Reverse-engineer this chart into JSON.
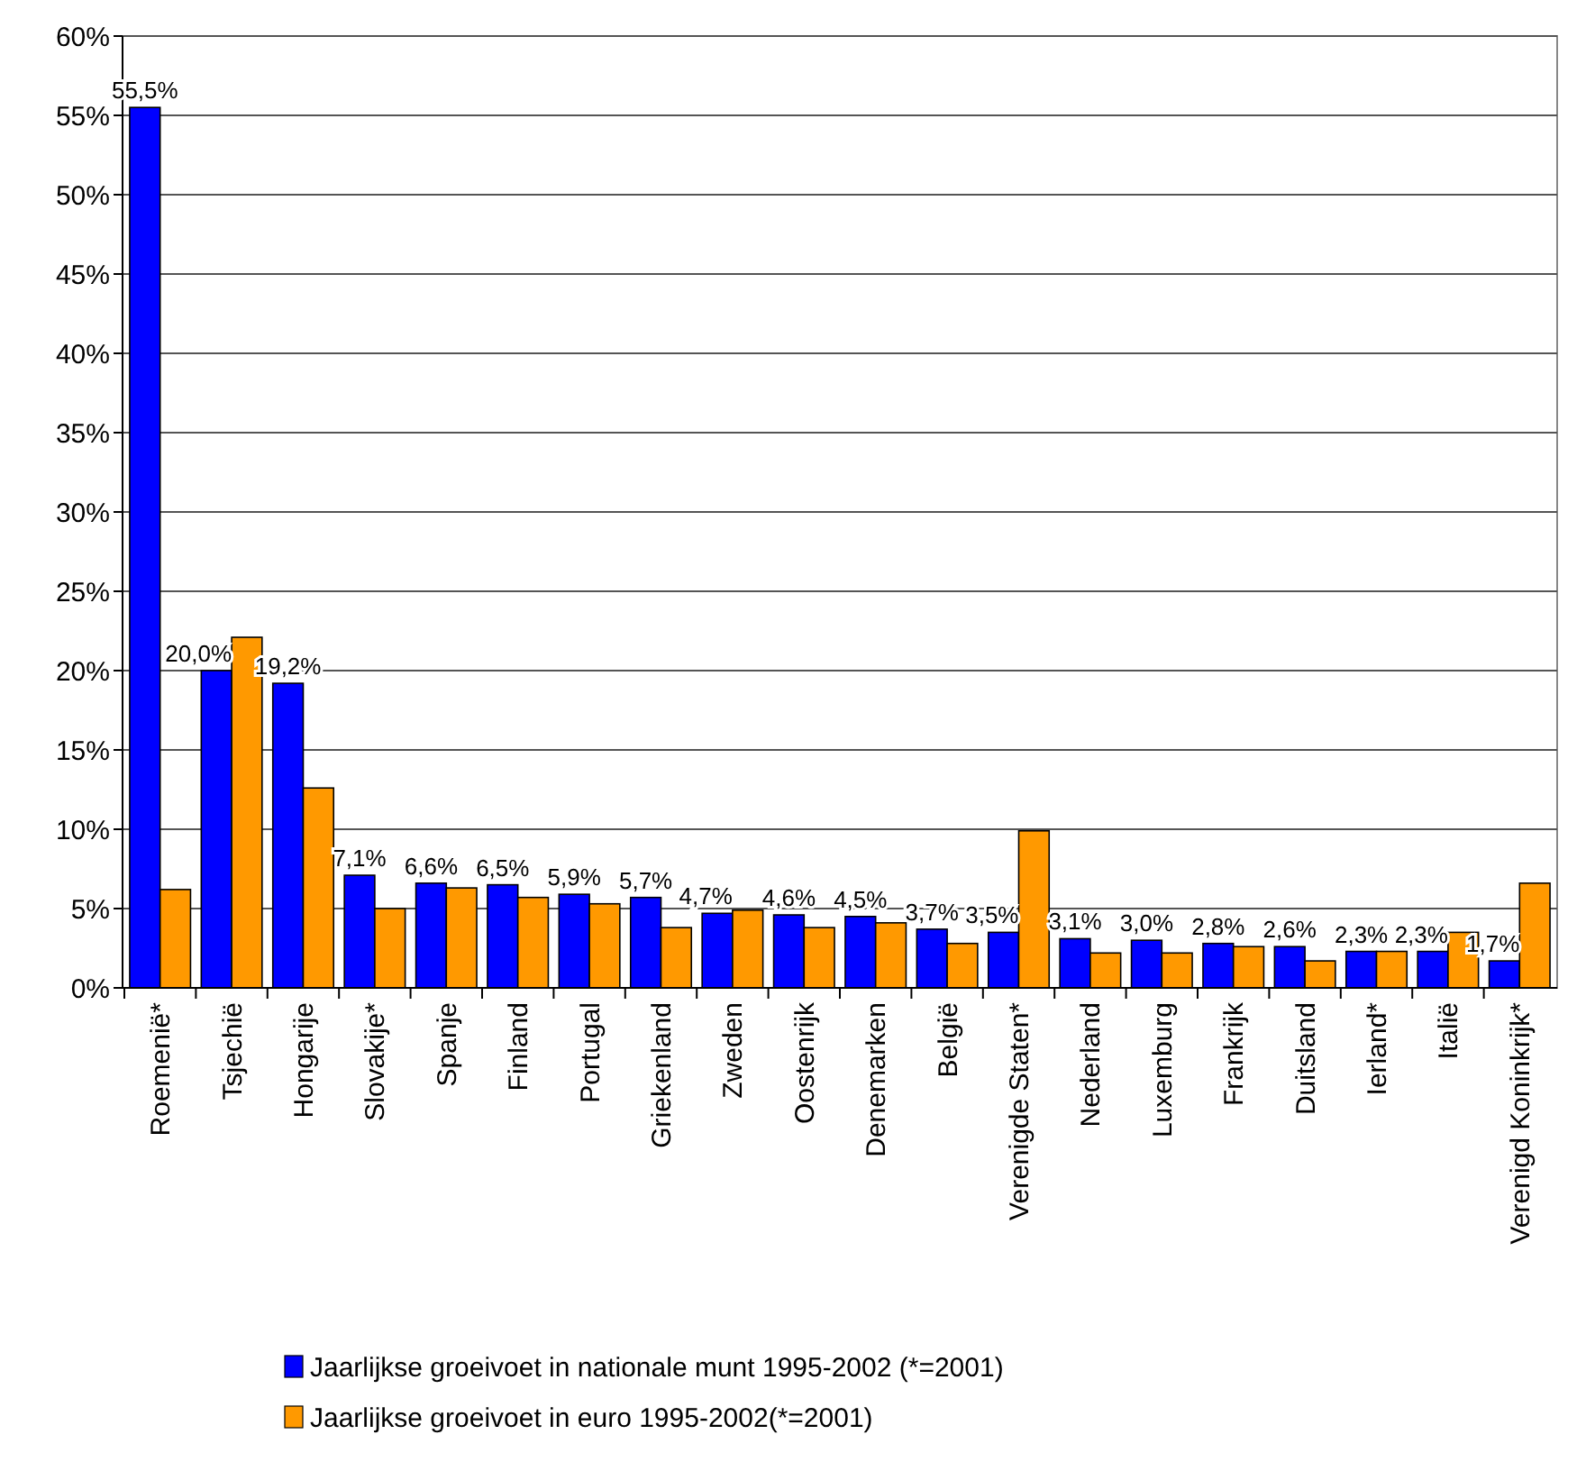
{
  "chart_data": {
    "type": "bar",
    "categories": [
      "Roemenië*",
      "Tsjechië",
      "Hongarije",
      "Slovakije*",
      "Spanje",
      "Finland",
      "Portugal",
      "Griekenland",
      "Zweden",
      "Oostenrijk",
      "Denemarken",
      "België",
      "Verenigde Staten*",
      "Nederland",
      "Luxemburg",
      "Frankrijk",
      "Duitsland",
      "Ierland*",
      "Italië",
      "Verenigd Koninkrijk*"
    ],
    "series": [
      {
        "name": "Jaarlijkse groeivoet in nationale munt 1995-2002 (*=2001)",
        "color": "#0000ff",
        "values": [
          55.5,
          20.0,
          19.2,
          7.1,
          6.6,
          6.5,
          5.9,
          5.7,
          4.7,
          4.6,
          4.5,
          3.7,
          3.5,
          3.1,
          3.0,
          2.8,
          2.6,
          2.3,
          2.3,
          1.7
        ],
        "value_labels": [
          "55,5%",
          "20,0%",
          "19,2%",
          "7,1%",
          "6,6%",
          "6,5%",
          "5,9%",
          "5,7%",
          "4,7%",
          "4,6%",
          "4,5%",
          "3,7%",
          "3,5%",
          "3,1%",
          "3,0%",
          "2,8%",
          "2,6%",
          "2,3%",
          "2,3%",
          "1,7%"
        ]
      },
      {
        "name": "Jaarlijkse groeivoet in euro 1995-2002(*=2001)",
        "color": "#ff9900",
        "values": [
          6.2,
          22.1,
          12.6,
          5.0,
          6.3,
          5.7,
          5.3,
          3.8,
          4.9,
          3.8,
          4.1,
          2.8,
          9.9,
          2.2,
          2.2,
          2.6,
          1.7,
          2.3,
          3.5,
          6.6
        ]
      }
    ],
    "ylim": [
      0,
      60
    ],
    "yticks": [
      {
        "value": 0,
        "label": "0%"
      },
      {
        "value": 5,
        "label": "5%"
      },
      {
        "value": 10,
        "label": "10%"
      },
      {
        "value": 15,
        "label": "15%"
      },
      {
        "value": 20,
        "label": "20%"
      },
      {
        "value": 25,
        "label": "25%"
      },
      {
        "value": 30,
        "label": "30%"
      },
      {
        "value": 35,
        "label": "35%"
      },
      {
        "value": 40,
        "label": "40%"
      },
      {
        "value": 45,
        "label": "45%"
      },
      {
        "value": 50,
        "label": "50%"
      },
      {
        "value": 55,
        "label": "55%"
      },
      {
        "value": 60,
        "label": "60%"
      }
    ],
    "grid": "y",
    "legend": "bottom"
  }
}
